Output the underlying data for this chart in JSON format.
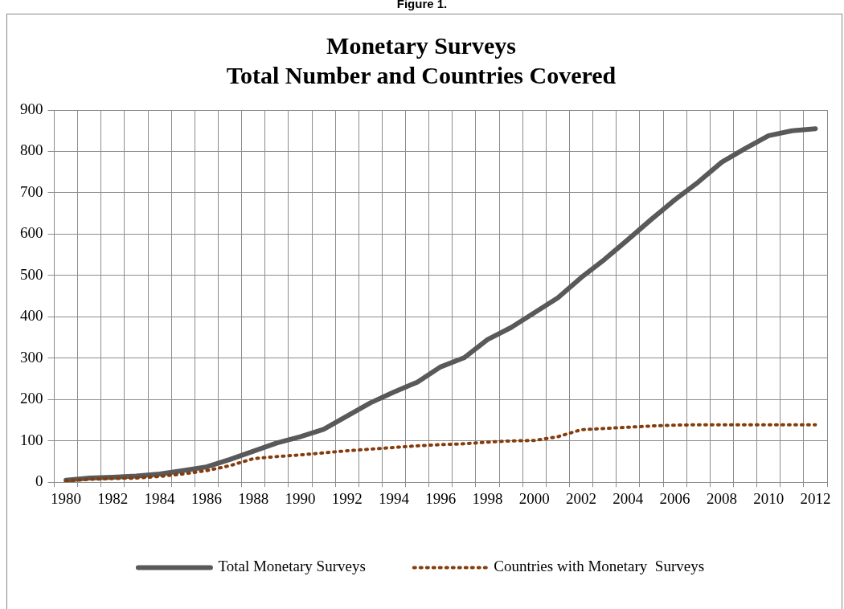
{
  "chart_data": {
    "type": "line",
    "title": "Monetary Surveys\nTotal Number and Countries Covered",
    "annotations": [
      "Figure 1."
    ],
    "categories": [
      "1980",
      null,
      "1982",
      null,
      "1984",
      null,
      "1986",
      null,
      "1988",
      null,
      "1990",
      null,
      "1992",
      null,
      "1994",
      null,
      "1996",
      null,
      "1998",
      null,
      "2000",
      null,
      "2002",
      null,
      "2004",
      null,
      "2006",
      null,
      "2008",
      null,
      "2010",
      null,
      "2012"
    ],
    "series": [
      {
        "name": "Total Monetary Surveys",
        "color": "#595959",
        "line_style": "solid",
        "values": [
          5,
          10,
          12,
          15,
          20,
          28,
          37,
          55,
          75,
          95,
          110,
          128,
          160,
          192,
          218,
          242,
          279,
          301,
          345,
          374,
          410,
          446,
          495,
          539,
          587,
          636,
          683,
          726,
          774,
          807,
          838,
          850,
          855
        ]
      },
      {
        "name": "Countries with Monetary  Surveys",
        "color": "#843c0c",
        "line_style": "dotted",
        "values": [
          3,
          7,
          9,
          10,
          14,
          20,
          28,
          40,
          57,
          62,
          66,
          71,
          76,
          80,
          84,
          88,
          91,
          93,
          97,
          100,
          101,
          110,
          127,
          130,
          133,
          136,
          138,
          139,
          139,
          139,
          139,
          139,
          139
        ]
      }
    ],
    "ylim": [
      0,
      900
    ],
    "yticks": [
      0,
      100,
      200,
      300,
      400,
      500,
      600,
      700,
      800,
      900
    ],
    "grid": true,
    "legend": "bottom",
    "marker": "none"
  }
}
